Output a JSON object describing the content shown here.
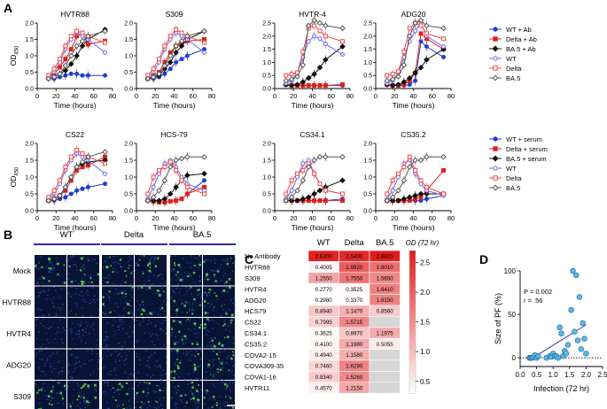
{
  "panels": {
    "A": "A",
    "B": "B",
    "C": "C",
    "D": "D"
  },
  "colors": {
    "wt_ab": "#1f3fd1",
    "delta_ab": "#e0201b",
    "ba5_ab": "#111111",
    "wt": "#6a6ae8",
    "delta": "#f24a4a",
    "ba5": "#555555",
    "heat_low": "#ffffff",
    "heat_high": "#e21b1b",
    "scatter_fill": "#58b9e8",
    "regression": "#3a3ad0"
  },
  "panel_a": {
    "ylabel": "OD",
    "ylabel_sub": "450",
    "xlabel": "Time (hours)",
    "x_ticks": [
      0,
      20,
      40,
      60,
      80
    ],
    "y_ticks": [
      0.0,
      0.5,
      1.0,
      1.5,
      2.0
    ],
    "y_ticks_alt": [
      0.0,
      0.5,
      1.0,
      1.5,
      2.0,
      2.5
    ],
    "legend_ab": [
      "WT + Ab",
      "Delta + Ab",
      "BA.5 + Ab",
      "WT",
      "Delta",
      "BA.5"
    ],
    "legend_serum": [
      "WT + serum",
      "Delta + serum",
      "BA.5 + serum",
      "WT",
      "Delta",
      "BA.5"
    ]
  },
  "chart_data": [
    {
      "type": "line",
      "title": "HVTR88",
      "xlabel": "Time (hours)",
      "ylabel": "OD450",
      "xlim": [
        0,
        80
      ],
      "ylim": [
        0,
        2.0
      ],
      "x": [
        12,
        18,
        24,
        30,
        36,
        42,
        48,
        54,
        72
      ],
      "series": [
        {
          "name": "WT + Ab",
          "values": [
            0.3,
            0.3,
            0.35,
            0.4,
            0.45,
            0.45,
            0.4,
            0.4,
            0.4
          ]
        },
        {
          "name": "Delta + Ab",
          "values": [
            0.35,
            0.45,
            0.65,
            0.9,
            1.2,
            1.6,
            1.7,
            1.35,
            1.45
          ]
        },
        {
          "name": "BA.5 + Ab",
          "values": [
            0.3,
            0.35,
            0.45,
            0.55,
            0.75,
            1.0,
            1.3,
            1.5,
            1.8
          ]
        },
        {
          "name": "WT",
          "values": [
            0.35,
            0.5,
            0.8,
            1.2,
            1.5,
            1.7,
            1.6,
            1.5,
            1.1
          ]
        },
        {
          "name": "Delta",
          "values": [
            0.4,
            0.6,
            0.9,
            1.3,
            1.6,
            1.75,
            1.7,
            1.6,
            1.4
          ]
        },
        {
          "name": "BA.5",
          "values": [
            0.3,
            0.35,
            0.45,
            0.7,
            1.0,
            1.3,
            1.45,
            1.6,
            1.75
          ]
        }
      ]
    },
    {
      "type": "line",
      "title": "S309",
      "xlabel": "Time (hours)",
      "ylabel": "OD450",
      "xlim": [
        0,
        80
      ],
      "ylim": [
        0,
        2.0
      ],
      "x": [
        12,
        18,
        24,
        30,
        36,
        42,
        48,
        54,
        72
      ],
      "series": [
        {
          "name": "WT + Ab",
          "values": [
            0.3,
            0.3,
            0.35,
            0.45,
            0.6,
            0.8,
            0.9,
            1.0,
            1.2
          ]
        },
        {
          "name": "Delta + Ab",
          "values": [
            0.3,
            0.4,
            0.5,
            0.8,
            1.1,
            1.3,
            1.4,
            1.45,
            1.5
          ]
        },
        {
          "name": "BA.5 + Ab",
          "values": [
            0.3,
            0.35,
            0.4,
            0.6,
            0.8,
            1.1,
            1.3,
            1.5,
            1.75
          ]
        },
        {
          "name": "WT",
          "values": [
            0.35,
            0.5,
            0.8,
            1.2,
            1.5,
            1.7,
            1.6,
            1.5,
            1.1
          ]
        },
        {
          "name": "Delta",
          "values": [
            0.4,
            0.6,
            0.9,
            1.3,
            1.6,
            1.8,
            1.7,
            1.6,
            1.4
          ]
        },
        {
          "name": "BA.5",
          "values": [
            0.3,
            0.35,
            0.45,
            0.7,
            1.0,
            1.3,
            1.45,
            1.6,
            1.75
          ]
        }
      ]
    },
    {
      "type": "line",
      "title": "HVTR-4",
      "xlabel": "Time (hours)",
      "ylabel": "OD450",
      "xlim": [
        0,
        80
      ],
      "ylim": [
        0,
        2.5
      ],
      "x": [
        12,
        18,
        24,
        30,
        36,
        42,
        48,
        54,
        72
      ],
      "series": [
        {
          "name": "WT + Ab",
          "values": [
            0.15,
            0.12,
            0.12,
            0.12,
            0.12,
            0.12,
            0.12,
            0.12,
            0.12
          ]
        },
        {
          "name": "Delta + Ab",
          "values": [
            0.15,
            0.12,
            0.12,
            0.12,
            0.12,
            0.12,
            0.12,
            0.12,
            0.15
          ]
        },
        {
          "name": "BA.5 + Ab",
          "values": [
            0.15,
            0.12,
            0.15,
            0.25,
            0.4,
            0.55,
            0.8,
            1.1,
            1.6
          ]
        },
        {
          "name": "WT",
          "values": [
            0.2,
            0.3,
            0.6,
            1.2,
            1.8,
            2.0,
            1.9,
            1.7,
            1.3
          ]
        },
        {
          "name": "Delta",
          "values": [
            0.5,
            0.55,
            0.6,
            1.4,
            2.3,
            2.4,
            2.2,
            2.0,
            1.8
          ]
        },
        {
          "name": "BA.5",
          "values": [
            0.3,
            0.35,
            0.45,
            0.9,
            2.4,
            2.6,
            2.5,
            2.4,
            2.3
          ]
        }
      ]
    },
    {
      "type": "line",
      "title": "ADG20",
      "xlabel": "Time (hours)",
      "ylabel": "OD450",
      "xlim": [
        0,
        80
      ],
      "ylim": [
        0,
        2.5
      ],
      "x": [
        12,
        18,
        24,
        30,
        36,
        42,
        48,
        54,
        72
      ],
      "series": [
        {
          "name": "WT + Ab",
          "values": [
            0.15,
            0.12,
            0.12,
            0.12,
            0.15,
            0.3,
            1.8,
            1.6,
            1.2
          ]
        },
        {
          "name": "Delta + Ab",
          "values": [
            0.15,
            0.12,
            0.12,
            0.15,
            0.3,
            0.6,
            2.1,
            1.9,
            1.5
          ]
        },
        {
          "name": "BA.5 + Ab",
          "values": [
            0.15,
            0.12,
            0.15,
            0.25,
            0.4,
            0.6,
            0.8,
            1.1,
            1.5
          ]
        },
        {
          "name": "WT",
          "values": [
            0.2,
            0.3,
            0.6,
            1.2,
            1.8,
            2.2,
            2.5,
            2.0,
            1.6
          ]
        },
        {
          "name": "Delta",
          "values": [
            0.5,
            0.55,
            0.65,
            1.4,
            2.3,
            2.5,
            2.4,
            2.1,
            1.9
          ]
        },
        {
          "name": "BA.5",
          "values": [
            0.3,
            0.35,
            0.45,
            0.9,
            2.0,
            2.5,
            2.6,
            2.4,
            2.3
          ]
        }
      ]
    },
    {
      "type": "line",
      "title": "CS22",
      "xlabel": "Time (hours)",
      "ylabel": "OD450",
      "xlim": [
        0,
        80
      ],
      "ylim": [
        0,
        2.0
      ],
      "x": [
        12,
        18,
        24,
        30,
        36,
        42,
        48,
        54,
        72
      ],
      "series": [
        {
          "name": "WT + serum",
          "values": [
            0.3,
            0.3,
            0.35,
            0.4,
            0.5,
            0.6,
            0.65,
            0.7,
            0.8
          ]
        },
        {
          "name": "Delta + serum",
          "values": [
            0.3,
            0.35,
            0.45,
            0.6,
            0.9,
            1.2,
            1.3,
            1.35,
            1.6
          ]
        },
        {
          "name": "BA.5 + serum",
          "values": [
            0.3,
            0.35,
            0.45,
            0.7,
            1.0,
            1.3,
            1.4,
            1.45,
            1.5
          ]
        },
        {
          "name": "WT",
          "values": [
            0.35,
            0.5,
            0.8,
            1.2,
            1.5,
            1.7,
            1.6,
            1.5,
            1.1
          ]
        },
        {
          "name": "Delta",
          "values": [
            0.4,
            0.6,
            0.9,
            1.3,
            1.6,
            1.8,
            1.7,
            1.6,
            1.4
          ]
        },
        {
          "name": "BA.5",
          "values": [
            0.3,
            0.35,
            0.45,
            0.7,
            1.0,
            1.3,
            1.45,
            1.6,
            1.75
          ]
        }
      ]
    },
    {
      "type": "line",
      "title": "HCS-79",
      "xlabel": "Time (hours)",
      "ylabel": "OD450",
      "xlim": [
        0,
        80
      ],
      "ylim": [
        0,
        2.0
      ],
      "x": [
        12,
        18,
        24,
        30,
        36,
        42,
        48,
        54,
        72
      ],
      "series": [
        {
          "name": "WT + serum",
          "values": [
            0.3,
            0.28,
            0.25,
            0.25,
            0.28,
            0.3,
            0.35,
            0.5,
            0.9
          ]
        },
        {
          "name": "Delta + serum",
          "values": [
            0.3,
            0.28,
            0.25,
            0.25,
            0.28,
            0.3,
            0.35,
            0.5,
            0.7
          ]
        },
        {
          "name": "BA.5 + serum",
          "values": [
            0.3,
            0.3,
            0.3,
            0.35,
            0.5,
            0.7,
            0.9,
            1.05,
            1.1
          ]
        },
        {
          "name": "WT",
          "values": [
            0.35,
            0.7,
            1.1,
            1.4,
            1.5,
            1.3,
            1.0,
            0.8,
            0.6
          ]
        },
        {
          "name": "Delta",
          "values": [
            0.5,
            1.0,
            1.2,
            1.3,
            1.45,
            1.2,
            0.9,
            0.7,
            0.5
          ]
        },
        {
          "name": "BA.5",
          "values": [
            0.3,
            0.4,
            0.6,
            0.9,
            1.3,
            1.5,
            1.55,
            1.6,
            1.6
          ]
        }
      ]
    },
    {
      "type": "line",
      "title": "CS34.1",
      "xlabel": "Time (hours)",
      "ylabel": "OD450",
      "xlim": [
        0,
        80
      ],
      "ylim": [
        0,
        2.0
      ],
      "x": [
        12,
        18,
        24,
        30,
        36,
        42,
        48,
        54,
        72
      ],
      "series": [
        {
          "name": "WT + serum",
          "values": [
            0.3,
            0.3,
            0.3,
            0.3,
            0.3,
            0.3,
            0.3,
            0.3,
            0.35
          ]
        },
        {
          "name": "Delta + serum",
          "values": [
            0.3,
            0.3,
            0.3,
            0.3,
            0.3,
            0.3,
            0.3,
            0.3,
            0.3
          ]
        },
        {
          "name": "BA.5 + serum",
          "values": [
            0.3,
            0.3,
            0.3,
            0.35,
            0.4,
            0.5,
            0.6,
            0.7,
            0.9
          ]
        },
        {
          "name": "WT",
          "values": [
            0.35,
            0.6,
            1.0,
            1.4,
            1.5,
            1.1,
            0.8,
            0.6,
            0.5
          ]
        },
        {
          "name": "Delta",
          "values": [
            0.5,
            0.9,
            1.1,
            1.2,
            1.4,
            1.1,
            0.8,
            0.6,
            0.5
          ]
        },
        {
          "name": "BA.5",
          "values": [
            0.3,
            0.4,
            0.6,
            0.9,
            1.3,
            1.5,
            1.6,
            1.6,
            1.6
          ]
        }
      ]
    },
    {
      "type": "line",
      "title": "CS35.2",
      "xlabel": "Time (hours)",
      "ylabel": "OD450",
      "xlim": [
        0,
        80
      ],
      "ylim": [
        0,
        2.0
      ],
      "x": [
        12,
        18,
        24,
        30,
        36,
        42,
        48,
        54,
        72
      ],
      "series": [
        {
          "name": "WT + serum",
          "values": [
            0.3,
            0.3,
            0.3,
            0.3,
            0.3,
            0.3,
            0.3,
            0.35,
            0.45
          ]
        },
        {
          "name": "Delta + serum",
          "values": [
            0.3,
            0.3,
            0.3,
            0.3,
            0.3,
            0.35,
            0.4,
            0.6,
            1.2
          ]
        },
        {
          "name": "BA.5 + serum",
          "values": [
            0.3,
            0.3,
            0.3,
            0.35,
            0.4,
            0.45,
            0.5,
            0.5,
            0.5
          ]
        },
        {
          "name": "WT",
          "values": [
            0.35,
            0.6,
            1.0,
            1.4,
            1.5,
            1.1,
            0.8,
            0.6,
            0.45
          ]
        },
        {
          "name": "Delta",
          "values": [
            0.5,
            0.9,
            1.1,
            1.3,
            1.6,
            1.2,
            0.9,
            0.7,
            0.5
          ]
        },
        {
          "name": "BA.5",
          "values": [
            0.3,
            0.4,
            0.6,
            0.9,
            1.3,
            1.5,
            1.5,
            1.6,
            1.6
          ]
        }
      ]
    },
    {
      "type": "heatmap",
      "title": "OD (72 hr)",
      "columns": [
        "WT",
        "Delta",
        "BA.5"
      ],
      "rows": [
        "No Antibody",
        "HVTR88",
        "S309",
        "HVTR4",
        "ADG20",
        "HCS79",
        "CS22",
        "CS34.1",
        "CS35.2",
        "COVA2-15",
        "COVA309-35",
        "COVA1-16",
        "HVTR11"
      ],
      "values": [
        [
          "2.6300",
          "2.5400",
          "2.6810"
        ],
        [
          "0.4005",
          "1.9920",
          "1.8010"
        ],
        [
          "1.2550",
          "1.7550",
          "1.5650"
        ],
        [
          "0.2770",
          "0.3525",
          "1.6410"
        ],
        [
          "0.2980",
          "0.3370",
          "1.6150"
        ],
        [
          "0.8940",
          "1.1470",
          "0.8560"
        ],
        [
          "0.7995",
          "1.5715",
          ""
        ],
        [
          "0.3625",
          "0.8970",
          "1.1975"
        ],
        [
          "0.4100",
          "1.1980",
          "0.5055"
        ],
        [
          "0.4940",
          "1.1580",
          ""
        ],
        [
          "0.7460",
          "1.6290",
          ""
        ],
        [
          "0.8340",
          "1.5260",
          ""
        ],
        [
          "0.4570",
          "1.2150",
          ""
        ]
      ],
      "colorbar_ticks": [
        "0.5",
        "1.0",
        "1.5",
        "2.0",
        "2.5"
      ],
      "colorbar_range": [
        0.3,
        2.7
      ]
    },
    {
      "type": "scatter",
      "xlabel": "Infection (72 hr)",
      "ylabel": "Size of PF (%)",
      "xlim": [
        0,
        2.5
      ],
      "ylim": [
        -10,
        100
      ],
      "x_ticks": [
        "0.0",
        "0.5",
        "1.0",
        "1.5",
        "2.0",
        "2.5"
      ],
      "y_ticks": [
        "0",
        "50",
        "100"
      ],
      "annotation_p": "P = 0.002",
      "annotation_r": "r = .56",
      "points": [
        [
          0.28,
          0
        ],
        [
          0.32,
          0
        ],
        [
          0.36,
          0
        ],
        [
          0.4,
          1
        ],
        [
          0.45,
          3
        ],
        [
          0.5,
          0
        ],
        [
          0.55,
          2
        ],
        [
          0.8,
          0
        ],
        [
          0.9,
          2
        ],
        [
          0.95,
          1
        ],
        [
          1.0,
          5
        ],
        [
          1.05,
          2
        ],
        [
          1.1,
          2
        ],
        [
          1.15,
          0
        ],
        [
          1.2,
          35
        ],
        [
          1.25,
          28
        ],
        [
          1.3,
          2
        ],
        [
          1.35,
          8
        ],
        [
          1.4,
          5
        ],
        [
          1.45,
          15
        ],
        [
          1.55,
          55
        ],
        [
          1.6,
          100
        ],
        [
          1.65,
          30
        ],
        [
          1.7,
          95
        ],
        [
          1.75,
          20
        ],
        [
          1.8,
          70
        ],
        [
          1.85,
          10
        ],
        [
          1.9,
          40
        ],
        [
          1.95,
          22
        ],
        [
          2.0,
          5
        ]
      ],
      "fit": {
        "x": [
          0.3,
          2.0
        ],
        "y": [
          -2,
          38
        ]
      }
    }
  ],
  "panel_b": {
    "columns": [
      "WT",
      "Delta",
      "BA.5"
    ],
    "rows": [
      "Mock",
      "HVTR88",
      "HVTR4",
      "ADG20",
      "S309"
    ]
  }
}
